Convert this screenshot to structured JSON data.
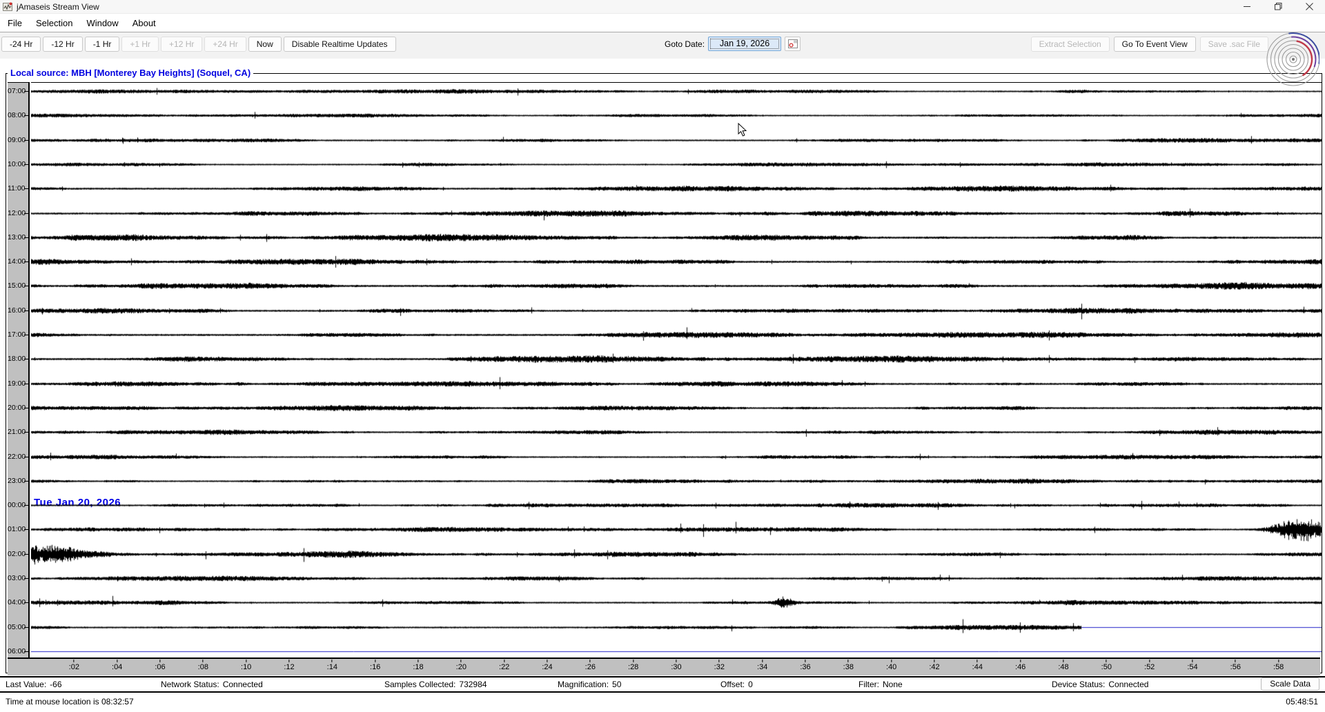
{
  "window": {
    "title": "jAmaseis Stream View"
  },
  "menu": {
    "items": [
      "File",
      "Selection",
      "Window",
      "About"
    ]
  },
  "toolbar": {
    "buttons": [
      {
        "label": "-24 Hr"
      },
      {
        "label": "-12 Hr"
      },
      {
        "label": "-1 Hr"
      },
      {
        "label": "+1 Hr"
      },
      {
        "label": "+12 Hr"
      },
      {
        "label": "+24 Hr"
      },
      {
        "label": "Now"
      },
      {
        "label": "Disable Realtime Updates"
      }
    ],
    "goto_date_label": "Goto Date:",
    "goto_date_value": "Jan 19, 2026",
    "extract_selection_label": "Extract Selection",
    "go_to_event_label": "Go To Event View",
    "save_sac_label": "Save .sac File"
  },
  "stream": {
    "source_label": "Local source: MBH [Monterey Bay Heights] (Soquel, CA)",
    "day_marker": "Tue Jan 20, 2026",
    "rows": [
      {
        "label": "07:00",
        "amp": 1.6,
        "end": 1
      },
      {
        "label": "08:00",
        "amp": 1.5,
        "end": 1
      },
      {
        "label": "09:00",
        "amp": 1.8,
        "end": 1
      },
      {
        "label": "10:00",
        "amp": 1.6,
        "end": 1
      },
      {
        "label": "11:00",
        "amp": 2.3,
        "end": 1
      },
      {
        "label": "12:00",
        "amp": 2.4,
        "end": 1
      },
      {
        "label": "13:00",
        "amp": 2.6,
        "end": 1
      },
      {
        "label": "14:00",
        "amp": 2.5,
        "end": 1
      },
      {
        "label": "15:00",
        "amp": 2.6,
        "end": 1
      },
      {
        "label": "16:00",
        "amp": 2.3,
        "end": 1
      },
      {
        "label": "17:00",
        "amp": 2.5,
        "end": 1
      },
      {
        "label": "18:00",
        "amp": 2.7,
        "end": 1
      },
      {
        "label": "19:00",
        "amp": 2.4,
        "end": 1
      },
      {
        "label": "20:00",
        "amp": 2.2,
        "end": 1
      },
      {
        "label": "21:00",
        "amp": 1.9,
        "end": 1
      },
      {
        "label": "22:00",
        "amp": 1.8,
        "end": 1
      },
      {
        "label": "23:00",
        "amp": 1.8,
        "end": 1
      },
      {
        "label": "00:00",
        "amp": 1.8,
        "end": 1
      },
      {
        "label": "01:00",
        "amp": 2.0,
        "end": 1,
        "events": [
          {
            "center": 1838,
            "sigma": 26,
            "amp": 19
          }
        ]
      },
      {
        "label": "02:00",
        "amp": 2.2,
        "end": 1,
        "events": [
          {
            "center": 5,
            "sigma": 55,
            "amp": 13
          }
        ]
      },
      {
        "label": "03:00",
        "amp": 2.0,
        "end": 1
      },
      {
        "label": "04:00",
        "amp": 1.9,
        "end": 1,
        "events": [
          {
            "center": 1091,
            "sigma": 9,
            "amp": 8
          }
        ]
      },
      {
        "label": "05:00",
        "amp": 1.9,
        "end": 0.814
      },
      {
        "label": "06:00",
        "amp": 0,
        "end": 0
      }
    ],
    "x_ticks": [
      ":02",
      ":04",
      ":06",
      ":08",
      ":10",
      ":12",
      ":14",
      ":16",
      ":18",
      ":20",
      ":22",
      ":24",
      ":26",
      ":28",
      ":30",
      ":32",
      ":34",
      ":36",
      ":38",
      ":40",
      ":42",
      ":44",
      ":46",
      ":48",
      ":50",
      ":52",
      ":54",
      ":56",
      ":58"
    ]
  },
  "status": {
    "items": [
      {
        "label": "Last Value:",
        "value": "-66"
      },
      {
        "label": "Network Status:",
        "value": "Connected"
      },
      {
        "label": "Samples Collected:",
        "value": "732984"
      },
      {
        "label": "Magnification:",
        "value": "50"
      },
      {
        "label": "Offset:",
        "value": "0"
      },
      {
        "label": "Filter:",
        "value": "None"
      },
      {
        "label": "Device Status:",
        "value": "Connected"
      }
    ],
    "scale_button_label": "Scale Data"
  },
  "footer": {
    "mouse_time_text": "Time at mouse location is 08:32:57",
    "clock": "05:48:51"
  },
  "colors": {
    "baseline_blue": "#2020c8",
    "trace_black": "#000000",
    "gutter_gray": "#c0c0c0",
    "source_label_blue": "#0000e0",
    "day_marker_blue": "#0000e6",
    "logo_blue": "#3b4da0",
    "logo_purple": "#6b3fa0",
    "logo_red": "#c03a4a"
  }
}
